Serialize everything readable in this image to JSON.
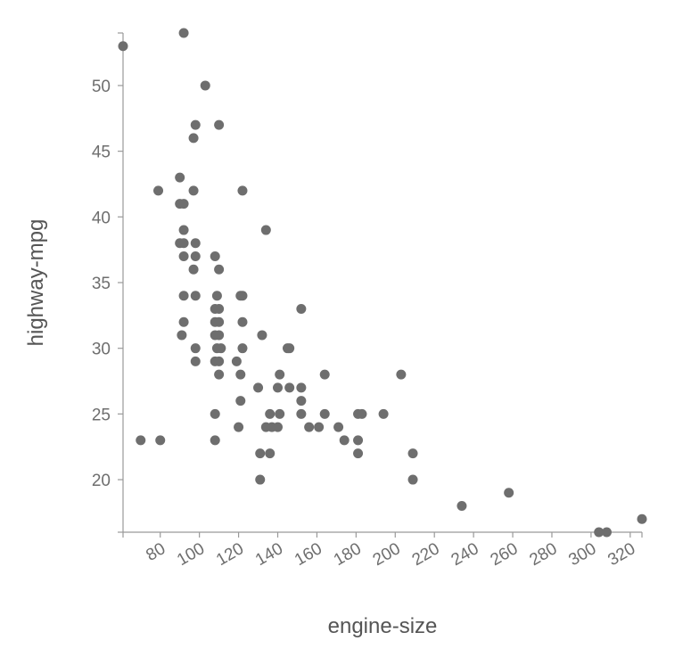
{
  "chart_data": {
    "type": "scatter",
    "title": "",
    "xlabel": "engine-size",
    "ylabel": "highway-mpg",
    "xlim": [
      61,
      326
    ],
    "ylim": [
      16,
      54
    ],
    "x_ticks": [
      80,
      100,
      120,
      140,
      160,
      180,
      200,
      220,
      240,
      260,
      280,
      300,
      320
    ],
    "y_ticks": [
      20,
      25,
      30,
      35,
      40,
      45,
      50
    ],
    "grid": false,
    "legend": "none",
    "point_color": "#6e6e6e",
    "points": [
      [
        61,
        53
      ],
      [
        92,
        54
      ],
      [
        103,
        50
      ],
      [
        98,
        47
      ],
      [
        110,
        47
      ],
      [
        97,
        46
      ],
      [
        90,
        43
      ],
      [
        79,
        42
      ],
      [
        97,
        42
      ],
      [
        122,
        42
      ],
      [
        90,
        41
      ],
      [
        92,
        41
      ],
      [
        92,
        39
      ],
      [
        134,
        39
      ],
      [
        90,
        38
      ],
      [
        92,
        38
      ],
      [
        98,
        38
      ],
      [
        92,
        37
      ],
      [
        98,
        37
      ],
      [
        108,
        37
      ],
      [
        110,
        36
      ],
      [
        97,
        36
      ],
      [
        92,
        34
      ],
      [
        98,
        34
      ],
      [
        109,
        34
      ],
      [
        121,
        34
      ],
      [
        122,
        34
      ],
      [
        108,
        33
      ],
      [
        110,
        33
      ],
      [
        152,
        33
      ],
      [
        108,
        32
      ],
      [
        110,
        32
      ],
      [
        122,
        32
      ],
      [
        92,
        32
      ],
      [
        91,
        31
      ],
      [
        108,
        31
      ],
      [
        110,
        31
      ],
      [
        132,
        31
      ],
      [
        98,
        30
      ],
      [
        109,
        30
      ],
      [
        111,
        30
      ],
      [
        122,
        30
      ],
      [
        146,
        30
      ],
      [
        145,
        30
      ],
      [
        98,
        29
      ],
      [
        108,
        29
      ],
      [
        110,
        29
      ],
      [
        119,
        29
      ],
      [
        110,
        28
      ],
      [
        121,
        28
      ],
      [
        141,
        28
      ],
      [
        164,
        28
      ],
      [
        203,
        28
      ],
      [
        130,
        27
      ],
      [
        140,
        27
      ],
      [
        146,
        27
      ],
      [
        152,
        27
      ],
      [
        121,
        26
      ],
      [
        152,
        26
      ],
      [
        108,
        25
      ],
      [
        136,
        25
      ],
      [
        141,
        25
      ],
      [
        152,
        25
      ],
      [
        164,
        25
      ],
      [
        181,
        25
      ],
      [
        183,
        25
      ],
      [
        194,
        25
      ],
      [
        120,
        24
      ],
      [
        134,
        24
      ],
      [
        137,
        24
      ],
      [
        140,
        24
      ],
      [
        156,
        24
      ],
      [
        161,
        24
      ],
      [
        171,
        24
      ],
      [
        70,
        23
      ],
      [
        80,
        23
      ],
      [
        108,
        23
      ],
      [
        174,
        23
      ],
      [
        181,
        23
      ],
      [
        131,
        22
      ],
      [
        136,
        22
      ],
      [
        181,
        22
      ],
      [
        209,
        22
      ],
      [
        131,
        20
      ],
      [
        209,
        20
      ],
      [
        258,
        19
      ],
      [
        234,
        18
      ],
      [
        304,
        16
      ],
      [
        308,
        16
      ],
      [
        326,
        17
      ]
    ]
  }
}
